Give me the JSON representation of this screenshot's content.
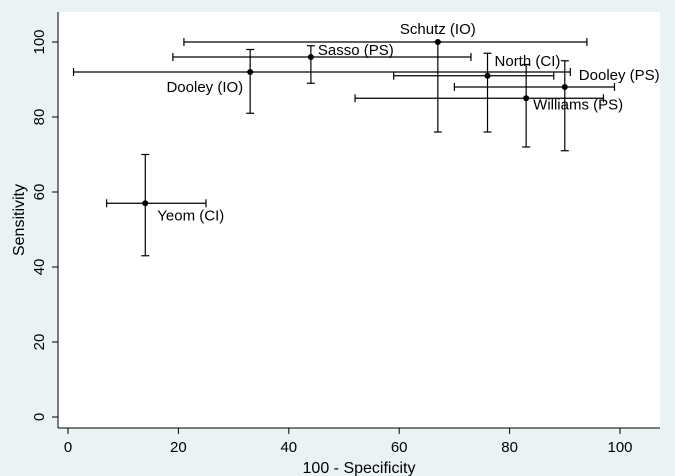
{
  "chart_data": {
    "type": "scatter",
    "title": "",
    "xlabel": "100 - Specificity",
    "ylabel": "Sensitivity",
    "xlim": [
      0,
      100
    ],
    "ylim": [
      0,
      100
    ],
    "x_ticks": [
      0,
      20,
      40,
      60,
      80,
      100
    ],
    "y_ticks": [
      0,
      20,
      40,
      60,
      80,
      100
    ],
    "grid": false,
    "background": "#eaf2f3",
    "plot_background": "#ffffff",
    "marker_color": "#000000",
    "points": [
      {
        "label": "Schutz (IO)",
        "x": 67,
        "y": 100,
        "x_ci": [
          21,
          94
        ],
        "y_ci": [
          76,
          100
        ],
        "label_side": "top"
      },
      {
        "label": "Sasso (PS)",
        "x": 44,
        "y": 96,
        "x_ci": [
          19,
          73
        ],
        "y_ci": [
          89,
          99
        ],
        "label_side": "right"
      },
      {
        "label": "North (CI)",
        "x": 76,
        "y": 91,
        "x_ci": [
          59,
          88
        ],
        "y_ci": [
          76,
          97
        ],
        "label_side": "right"
      },
      {
        "label": "Dooley (IO)",
        "x": 33,
        "y": 92,
        "x_ci": [
          1,
          91
        ],
        "y_ci": [
          81,
          98
        ],
        "label_side": "left"
      },
      {
        "label": "Dooley (PS)",
        "x": 90,
        "y": 88,
        "x_ci": [
          70,
          99
        ],
        "y_ci": [
          71,
          95
        ],
        "label_side": "right"
      },
      {
        "label": "Williams (PS)",
        "x": 83,
        "y": 85,
        "x_ci": [
          52,
          97
        ],
        "y_ci": [
          72,
          94
        ],
        "label_side": "right"
      },
      {
        "label": "Yeom (CI)",
        "x": 14,
        "y": 57,
        "x_ci": [
          7,
          25
        ],
        "y_ci": [
          43,
          70
        ],
        "label_side": "right"
      }
    ]
  }
}
